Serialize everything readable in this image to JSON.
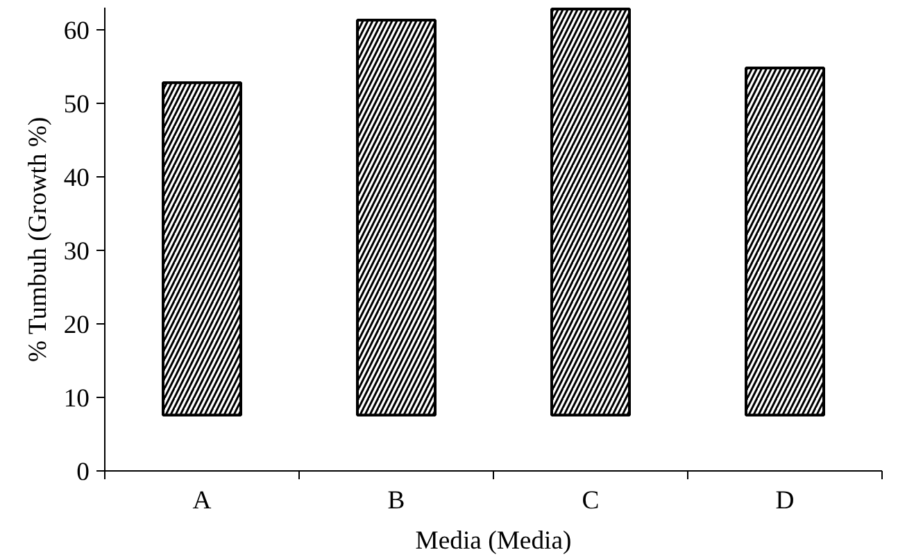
{
  "chart_data": {
    "type": "bar",
    "xlabel": "Media (Media)",
    "ylabel": "% Tumbuh (Growth %)",
    "categories": [
      "A",
      "B",
      "C",
      "D"
    ],
    "values": [
      45.2,
      53.7,
      55.2,
      47.2
    ],
    "base": [
      7.6,
      7.6,
      7.6,
      7.6
    ],
    "color": "#000000",
    "ylim": [
      0,
      63
    ],
    "yticks": [
      0,
      10,
      20,
      30,
      40,
      50,
      60
    ],
    "grid": false
  }
}
